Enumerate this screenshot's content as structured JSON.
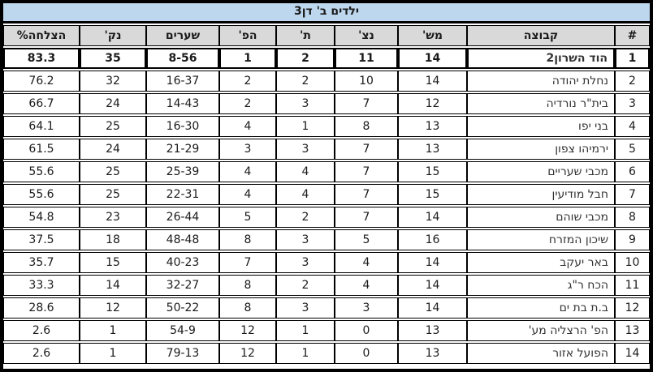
{
  "title": "ילדים ב' דן3",
  "colors": {
    "title_bg": "#BDD7EE",
    "header_bg": "#D9D9D9",
    "row_bg": "#FFFFFF",
    "border": "#000000",
    "team_text": "#333333"
  },
  "columns": [
    {
      "key": "rank",
      "label": "#"
    },
    {
      "key": "team",
      "label": "קבוצה"
    },
    {
      "key": "games",
      "label": "מש'"
    },
    {
      "key": "wins",
      "label": "נצ'"
    },
    {
      "key": "draws",
      "label": "ת'"
    },
    {
      "key": "losses",
      "label": "הפ'"
    },
    {
      "key": "goals",
      "label": "שערים"
    },
    {
      "key": "points",
      "label": "נק'"
    },
    {
      "key": "success",
      "label": "הצלחה%"
    }
  ],
  "rows": [
    {
      "rank": "1",
      "team": "הוד השרון2",
      "games": "14",
      "wins": "11",
      "draws": "2",
      "losses": "1",
      "goals": "8-56",
      "points": "35",
      "success": "83.3",
      "highlight": true
    },
    {
      "rank": "2",
      "team": "נחלת יהודה",
      "games": "14",
      "wins": "10",
      "draws": "2",
      "losses": "2",
      "goals": "16-37",
      "points": "32",
      "success": "76.2",
      "highlight": false
    },
    {
      "rank": "3",
      "team": "בית\"ר נורדיה",
      "games": "12",
      "wins": "7",
      "draws": "3",
      "losses": "2",
      "goals": "14-43",
      "points": "24",
      "success": "66.7",
      "highlight": false
    },
    {
      "rank": "4",
      "team": "בני יפו",
      "games": "13",
      "wins": "8",
      "draws": "1",
      "losses": "4",
      "goals": "16-30",
      "points": "25",
      "success": "64.1",
      "highlight": false
    },
    {
      "rank": "5",
      "team": "ירמיהו צפון",
      "games": "13",
      "wins": "7",
      "draws": "3",
      "losses": "3",
      "goals": "21-29",
      "points": "24",
      "success": "61.5",
      "highlight": false
    },
    {
      "rank": "6",
      "team": "מכבי שעריים",
      "games": "15",
      "wins": "7",
      "draws": "4",
      "losses": "4",
      "goals": "25-39",
      "points": "25",
      "success": "55.6",
      "highlight": false
    },
    {
      "rank": "7",
      "team": "חבל מודיעין",
      "games": "15",
      "wins": "7",
      "draws": "4",
      "losses": "4",
      "goals": "22-31",
      "points": "25",
      "success": "55.6",
      "highlight": false
    },
    {
      "rank": "8",
      "team": "מכבי שוהם",
      "games": "14",
      "wins": "7",
      "draws": "2",
      "losses": "5",
      "goals": "26-44",
      "points": "23",
      "success": "54.8",
      "highlight": false
    },
    {
      "rank": "9",
      "team": "שיכון המזרח",
      "games": "16",
      "wins": "5",
      "draws": "3",
      "losses": "8",
      "goals": "48-48",
      "points": "18",
      "success": "37.5",
      "highlight": false
    },
    {
      "rank": "10",
      "team": "באר יעקב",
      "games": "14",
      "wins": "4",
      "draws": "3",
      "losses": "7",
      "goals": "40-23",
      "points": "15",
      "success": "35.7",
      "highlight": false
    },
    {
      "rank": "11",
      "team": "הכח ר\"ג",
      "games": "14",
      "wins": "4",
      "draws": "2",
      "losses": "8",
      "goals": "32-27",
      "points": "14",
      "success": "33.3",
      "highlight": false
    },
    {
      "rank": "12",
      "team": "ב.ת בת ים",
      "games": "14",
      "wins": "3",
      "draws": "3",
      "losses": "8",
      "goals": "50-22",
      "points": "12",
      "success": "28.6",
      "highlight": false
    },
    {
      "rank": "13",
      "team": "הפ' הרצליה מע'",
      "games": "13",
      "wins": "0",
      "draws": "1",
      "losses": "12",
      "goals": "54-9",
      "points": "1",
      "success": "2.6",
      "highlight": false
    },
    {
      "rank": "14",
      "team": "הפועל אזור",
      "games": "13",
      "wins": "0",
      "draws": "1",
      "losses": "12",
      "goals": "79-13",
      "points": "1",
      "success": "2.6",
      "highlight": false
    }
  ],
  "chart_data": {
    "type": "table",
    "title": "ילדים ב' דן3",
    "headers": [
      "#",
      "קבוצה",
      "מש'",
      "נצ'",
      "ת'",
      "הפ'",
      "שערים",
      "נק'",
      "הצלחה%"
    ],
    "rows": [
      [
        "1",
        "הוד השרון2",
        "14",
        "11",
        "2",
        "1",
        "8-56",
        "35",
        "83.3"
      ],
      [
        "2",
        "נחלת יהודה",
        "14",
        "10",
        "2",
        "2",
        "16-37",
        "32",
        "76.2"
      ],
      [
        "3",
        "בית\"ר נורדיה",
        "12",
        "7",
        "3",
        "2",
        "14-43",
        "24",
        "66.7"
      ],
      [
        "4",
        "בני יפו",
        "13",
        "8",
        "1",
        "4",
        "16-30",
        "25",
        "64.1"
      ],
      [
        "5",
        "ירמיהו צפון",
        "13",
        "7",
        "3",
        "3",
        "21-29",
        "24",
        "61.5"
      ],
      [
        "6",
        "מכבי שעריים",
        "15",
        "7",
        "4",
        "4",
        "25-39",
        "25",
        "55.6"
      ],
      [
        "7",
        "חבל מודיעין",
        "15",
        "7",
        "4",
        "4",
        "22-31",
        "25",
        "55.6"
      ],
      [
        "8",
        "מכבי שוהם",
        "14",
        "7",
        "2",
        "5",
        "26-44",
        "23",
        "54.8"
      ],
      [
        "9",
        "שיכון המזרח",
        "16",
        "5",
        "3",
        "8",
        "48-48",
        "18",
        "37.5"
      ],
      [
        "10",
        "באר יעקב",
        "14",
        "4",
        "3",
        "7",
        "40-23",
        "15",
        "35.7"
      ],
      [
        "11",
        "הכח ר\"ג",
        "14",
        "4",
        "2",
        "8",
        "32-27",
        "14",
        "33.3"
      ],
      [
        "12",
        "ב.ת בת ים",
        "14",
        "3",
        "3",
        "8",
        "50-22",
        "12",
        "28.6"
      ],
      [
        "13",
        "הפ' הרצליה מע'",
        "13",
        "0",
        "1",
        "12",
        "54-9",
        "1",
        "2.6"
      ],
      [
        "14",
        "הפועל אזור",
        "13",
        "0",
        "1",
        "12",
        "79-13",
        "1",
        "2.6"
      ]
    ]
  }
}
